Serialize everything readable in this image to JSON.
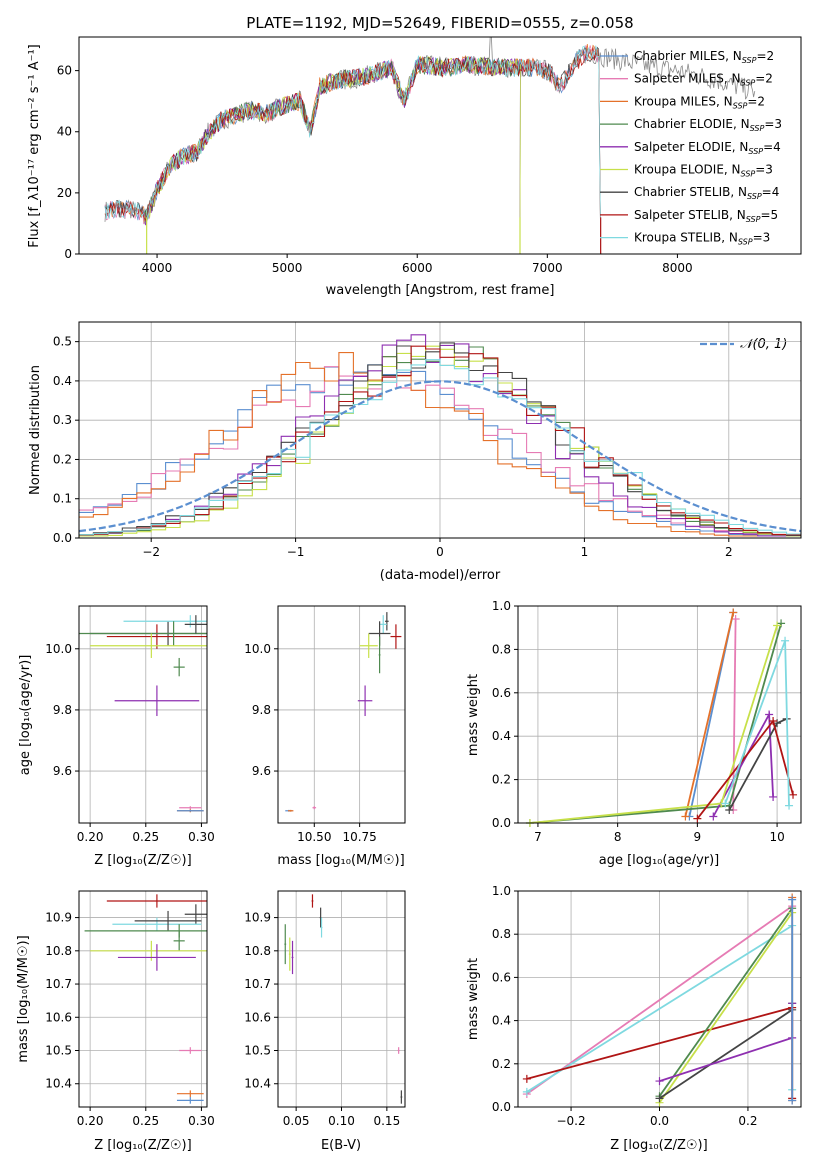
{
  "colors": {
    "Chabrier MILES": "#5b8fd0",
    "Salpeter MILES": "#e67bb4",
    "Kroupa MILES": "#e4712a",
    "Chabrier ELODIE": "#4f8a4f",
    "Salpeter ELODIE": "#8e2fb0",
    "Kroupa ELODIE": "#c7e04a",
    "Chabrier STELIB": "#444444",
    "Salpeter STELIB": "#b01515",
    "Kroupa STELIB": "#7fd9e0",
    "gaussian": "#5b8fd0"
  },
  "chart_data": [
    {
      "type": "line",
      "title": "PLATE=1192, MJD=52649, FIBERID=0555, z=0.058",
      "xlabel": "wavelength [Angstrom, rest frame]",
      "ylabel": "Flux [f_λ10⁻¹⁷ erg cm⁻² s⁻¹ A⁻¹]",
      "xlim": [
        3400,
        8950
      ],
      "ylim": [
        0,
        71
      ],
      "xticks": [
        "4000",
        "5000",
        "6000",
        "7000",
        "8000"
      ],
      "yticks": [
        "0",
        "20",
        "40",
        "60"
      ],
      "legend_position": "right",
      "spectrum_anchors": {
        "x": [
          3600,
          3700,
          3850,
          3920,
          4000,
          4100,
          4200,
          4300,
          4400,
          4500,
          4700,
          4850,
          5000,
          5100,
          5180,
          5250,
          5400,
          5600,
          5800,
          5900,
          6000,
          6200,
          6400,
          6600,
          6800,
          6900,
          7000,
          7100,
          7200,
          7300,
          7400
        ],
        "y": [
          14,
          15,
          14,
          12,
          21,
          29,
          32,
          33,
          40,
          44,
          47,
          46,
          49,
          50,
          40,
          55,
          57,
          58,
          61,
          50,
          62,
          61,
          62,
          61,
          61,
          61,
          60,
          55,
          62,
          66,
          65
        ]
      },
      "series": [
        {
          "name": "Chabrier MILES",
          "n_ssp": "2",
          "x_range": [
            3600,
            7400
          ],
          "drop_at": null
        },
        {
          "name": "Salpeter MILES",
          "n_ssp": "2",
          "x_range": [
            3600,
            7400
          ],
          "drop_at": null
        },
        {
          "name": "Kroupa MILES",
          "n_ssp": "2",
          "x_range": [
            3600,
            7400
          ],
          "drop_at": null
        },
        {
          "name": "Chabrier ELODIE",
          "n_ssp": "3",
          "x_range": [
            3900,
            6800
          ],
          "drop_at": 6790
        },
        {
          "name": "Salpeter ELODIE",
          "n_ssp": "4",
          "x_range": [
            3900,
            6800
          ],
          "drop_at": 6790
        },
        {
          "name": "Kroupa ELODIE",
          "n_ssp": "3",
          "x_range": [
            3900,
            6800
          ],
          "drop_at": 6790
        },
        {
          "name": "Chabrier STELIB",
          "n_ssp": "4",
          "x_range": [
            3600,
            7400
          ],
          "drop_at": 7410
        },
        {
          "name": "Salpeter STELIB",
          "n_ssp": "5",
          "x_range": [
            3600,
            7400
          ],
          "drop_at": 7410
        },
        {
          "name": "Kroupa STELIB",
          "n_ssp": "3",
          "x_range": [
            3600,
            7400
          ],
          "drop_at": 7410
        }
      ],
      "data_series": {
        "name": "data",
        "x_range": [
          3600,
          8600
        ],
        "tail_anchors": {
          "x": [
            7400,
            7700,
            8000,
            8300,
            8600
          ],
          "y": [
            65,
            62,
            60,
            57,
            53
          ]
        },
        "emission_line": {
          "x": 6563,
          "y": 71
        }
      }
    },
    {
      "type": "step",
      "xlabel": "(data-model)/error",
      "ylabel": "Normed distribution",
      "xlim": [
        -2.5,
        2.5
      ],
      "ylim": [
        0,
        0.55
      ],
      "xticks": [
        "−2",
        "−1",
        "0",
        "1",
        "2"
      ],
      "yticks": [
        "0.0",
        "0.1",
        "0.2",
        "0.3",
        "0.4",
        "0.5"
      ],
      "grid": true,
      "legend": {
        "label": "𝒩(0, 1)",
        "position": "top-right"
      },
      "gaussian": {
        "mean": 0,
        "sigma": 1
      },
      "bins": {
        "start": -2.5,
        "width": 0.1,
        "count": 50
      },
      "series": [
        {
          "name": "Chabrier MILES",
          "center": -0.55,
          "sigma": 0.95,
          "peak": 0.43
        },
        {
          "name": "Salpeter MILES",
          "center": -0.5,
          "sigma": 1.0,
          "peak": 0.41
        },
        {
          "name": "Kroupa MILES",
          "center": -0.6,
          "sigma": 0.9,
          "peak": 0.44
        },
        {
          "name": "Chabrier ELODIE",
          "center": 0.0,
          "sigma": 0.82,
          "peak": 0.47
        },
        {
          "name": "Salpeter ELODIE",
          "center": -0.1,
          "sigma": 0.8,
          "peak": 0.48
        },
        {
          "name": "Kroupa ELODIE",
          "center": 0.05,
          "sigma": 0.8,
          "peak": 0.48
        },
        {
          "name": "Chabrier STELIB",
          "center": -0.05,
          "sigma": 0.85,
          "peak": 0.47
        },
        {
          "name": "Salpeter STELIB",
          "center": 0.0,
          "sigma": 0.85,
          "peak": 0.46
        },
        {
          "name": "Kroupa STELIB",
          "center": 0.05,
          "sigma": 0.88,
          "peak": 0.44
        }
      ]
    },
    {
      "type": "scatter",
      "xlabel": "Z [log₁₀(Z/Z☉)]",
      "ylabel": "age  [log₁₀(age/yr)]",
      "xlim": [
        0.19,
        0.305
      ],
      "ylim": [
        9.43,
        10.14
      ],
      "xticks": [
        "0.20",
        "0.25",
        "0.30"
      ],
      "yticks": [
        "9.6",
        "9.8",
        "10.0"
      ],
      "grid": true,
      "points": [
        {
          "series": "Chabrier STELIB",
          "x": 0.27,
          "y": 10.05,
          "xerr": 0.07,
          "yerr": 0.04
        },
        {
          "series": "Salpeter STELIB",
          "x": 0.26,
          "y": 10.04,
          "xerr": 0.045,
          "yerr": 0.04
        },
        {
          "series": "Kroupa STELIB",
          "x": 0.29,
          "y": 10.09,
          "xerr": 0.06,
          "yerr": 0.02
        },
        {
          "series": "Chabrier ELODIE",
          "x": 0.275,
          "y": 10.05,
          "xerr": 0.085,
          "yerr": 0.04
        },
        {
          "series": "Chabrier STELIB",
          "x": 0.295,
          "y": 10.08,
          "xerr": 0.01,
          "yerr": 0.03
        },
        {
          "series": "Kroupa ELODIE",
          "x": 0.255,
          "y": 10.01,
          "xerr": 0.055,
          "yerr": 0.04
        },
        {
          "series": "Chabrier ELODIE",
          "x": 0.28,
          "y": 9.94,
          "xerr": 0.005,
          "yerr": 0.03
        },
        {
          "series": "Salpeter ELODIE",
          "x": 0.26,
          "y": 9.83,
          "xerr": 0.038,
          "yerr": 0.05
        },
        {
          "series": "Salpeter MILES",
          "x": 0.29,
          "y": 9.48,
          "xerr": 0.01,
          "yerr": 0.005
        },
        {
          "series": "Kroupa MILES",
          "x": 0.29,
          "y": 9.47,
          "xerr": 0.012,
          "yerr": 0.005
        },
        {
          "series": "Chabrier MILES",
          "x": 0.29,
          "y": 9.47,
          "xerr": 0.012,
          "yerr": 0.003
        }
      ]
    },
    {
      "type": "scatter",
      "xlabel": "mass [log₁₀(M/M☉)]",
      "ylabel": "",
      "xlim": [
        10.3,
        11.0
      ],
      "ylim": [
        9.43,
        10.14
      ],
      "xticks": [
        "10.50",
        "10.75"
      ],
      "yticks": [
        "9.6",
        "9.8",
        "10.0"
      ],
      "grid": true,
      "points": [
        {
          "series": "Chabrier STELIB",
          "x": 10.9,
          "y": 10.09,
          "xerr": 0.01,
          "yerr": 0.03
        },
        {
          "series": "Kroupa STELIB",
          "x": 10.88,
          "y": 10.08,
          "xerr": 0.02,
          "yerr": 0.03
        },
        {
          "series": "Chabrier STELIB",
          "x": 10.86,
          "y": 10.05,
          "xerr": 0.06,
          "yerr": 0.04
        },
        {
          "series": "Chabrier ELODIE",
          "x": 10.86,
          "y": 9.98,
          "xerr": 0.005,
          "yerr": 0.06
        },
        {
          "series": "Salpeter STELIB",
          "x": 10.95,
          "y": 10.04,
          "xerr": 0.03,
          "yerr": 0.04
        },
        {
          "series": "Kroupa ELODIE",
          "x": 10.8,
          "y": 10.01,
          "xerr": 0.05,
          "yerr": 0.04
        },
        {
          "series": "Salpeter ELODIE",
          "x": 10.78,
          "y": 9.83,
          "xerr": 0.04,
          "yerr": 0.05
        },
        {
          "series": "Salpeter MILES",
          "x": 10.5,
          "y": 9.48,
          "xerr": 0.01,
          "yerr": 0.005
        },
        {
          "series": "Chabrier MILES",
          "x": 10.36,
          "y": 9.47,
          "xerr": 0.02,
          "yerr": 0.003
        },
        {
          "series": "Kroupa MILES",
          "x": 10.37,
          "y": 9.47,
          "xerr": 0.015,
          "yerr": 0.003
        }
      ]
    },
    {
      "type": "line",
      "xlabel": "age  [log₁₀(age/yr)]",
      "ylabel": "mass weight",
      "xlim": [
        6.75,
        10.3
      ],
      "ylim": [
        0,
        1.0
      ],
      "xticks": [
        "7",
        "8",
        "9",
        "10"
      ],
      "yticks": [
        "0.0",
        "0.2",
        "0.4",
        "0.6",
        "0.8",
        "1.0"
      ],
      "grid": true,
      "series": [
        {
          "name": "Chabrier MILES",
          "x": [
            8.9,
            9.45
          ],
          "y": [
            0.03,
            0.97
          ]
        },
        {
          "name": "Salpeter MILES",
          "x": [
            9.45,
            9.48
          ],
          "y": [
            0.06,
            0.94
          ]
        },
        {
          "name": "Kroupa MILES",
          "x": [
            8.85,
            9.45
          ],
          "y": [
            0.03,
            0.97
          ]
        },
        {
          "name": "Chabrier ELODIE",
          "x": [
            6.9,
            9.4,
            10.05
          ],
          "y": [
            0.0,
            0.08,
            0.92
          ]
        },
        {
          "name": "Salpeter ELODIE",
          "x": [
            9.2,
            9.9,
            9.95
          ],
          "y": [
            0.03,
            0.5,
            0.12
          ]
        },
        {
          "name": "Kroupa ELODIE",
          "x": [
            6.9,
            9.3,
            10.0
          ],
          "y": [
            0.0,
            0.09,
            0.91
          ]
        },
        {
          "name": "Chabrier STELIB",
          "x": [
            9.4,
            10.0,
            10.12
          ],
          "y": [
            0.06,
            0.46,
            0.48
          ]
        },
        {
          "name": "Salpeter STELIB",
          "x": [
            9.0,
            9.95,
            10.2
          ],
          "y": [
            0.02,
            0.47,
            0.13
          ]
        },
        {
          "name": "Kroupa STELIB",
          "x": [
            9.35,
            10.1,
            10.15
          ],
          "y": [
            0.09,
            0.84,
            0.08
          ]
        }
      ]
    },
    {
      "type": "scatter",
      "xlabel": "Z [log₁₀(Z/Z☉)]",
      "ylabel": "mass [log₁₀(M/M☉)]",
      "xlim": [
        0.19,
        0.305
      ],
      "ylim": [
        10.33,
        10.98
      ],
      "xticks": [
        "0.20",
        "0.25",
        "0.30"
      ],
      "yticks": [
        "10.4",
        "10.5",
        "10.6",
        "10.7",
        "10.8",
        "10.9"
      ],
      "grid": true,
      "points": [
        {
          "series": "Salpeter STELIB",
          "x": 0.26,
          "y": 10.95,
          "xerr": 0.045,
          "yerr": 0.02
        },
        {
          "series": "Chabrier STELIB",
          "x": 0.295,
          "y": 10.91,
          "xerr": 0.01,
          "yerr": 0.03
        },
        {
          "series": "Kroupa STELIB",
          "x": 0.26,
          "y": 10.88,
          "xerr": 0.04,
          "yerr": 0.02
        },
        {
          "series": "Chabrier STELIB",
          "x": 0.27,
          "y": 10.89,
          "xerr": 0.03,
          "yerr": 0.03
        },
        {
          "series": "Chabrier ELODIE",
          "x": 0.28,
          "y": 10.86,
          "xerr": 0.085,
          "yerr": 0.02
        },
        {
          "series": "Chabrier ELODIE",
          "x": 0.28,
          "y": 10.83,
          "xerr": 0.005,
          "yerr": 0.03
        },
        {
          "series": "Kroupa ELODIE",
          "x": 0.255,
          "y": 10.8,
          "xerr": 0.055,
          "yerr": 0.03
        },
        {
          "series": "Salpeter ELODIE",
          "x": 0.26,
          "y": 10.78,
          "xerr": 0.035,
          "yerr": 0.04
        },
        {
          "series": "Salpeter MILES",
          "x": 0.29,
          "y": 10.5,
          "xerr": 0.01,
          "yerr": 0.01
        },
        {
          "series": "Kroupa MILES",
          "x": 0.29,
          "y": 10.37,
          "xerr": 0.012,
          "yerr": 0.01
        },
        {
          "series": "Chabrier MILES",
          "x": 0.29,
          "y": 10.35,
          "xerr": 0.012,
          "yerr": 0.01
        }
      ]
    },
    {
      "type": "scatter",
      "xlabel": "E(B-V)",
      "ylabel": "",
      "xlim": [
        0.03,
        0.17
      ],
      "ylim": [
        10.33,
        10.98
      ],
      "xticks": [
        "0.05",
        "0.10",
        "0.15"
      ],
      "yticks": [
        "10.4",
        "10.5",
        "10.6",
        "10.7",
        "10.8",
        "10.9"
      ],
      "grid": true,
      "points": [
        {
          "series": "Salpeter STELIB",
          "x": 0.068,
          "y": 10.95,
          "xerr": 0.001,
          "yerr": 0.02
        },
        {
          "series": "Chabrier STELIB",
          "x": 0.077,
          "y": 10.9,
          "xerr": 0.001,
          "yerr": 0.03
        },
        {
          "series": "Kroupa STELIB",
          "x": 0.078,
          "y": 10.87,
          "xerr": 0.001,
          "yerr": 0.03
        },
        {
          "series": "Chabrier ELODIE",
          "x": 0.038,
          "y": 10.82,
          "xerr": 0.001,
          "yerr": 0.06
        },
        {
          "series": "Kroupa ELODIE",
          "x": 0.043,
          "y": 10.79,
          "xerr": 0.001,
          "yerr": 0.05
        },
        {
          "series": "Salpeter ELODIE",
          "x": 0.046,
          "y": 10.78,
          "xerr": 0.001,
          "yerr": 0.05
        },
        {
          "series": "Salpeter MILES",
          "x": 0.163,
          "y": 10.5,
          "xerr": 0.001,
          "yerr": 0.01
        },
        {
          "series": "Chabrier STELIB",
          "x": 0.166,
          "y": 10.36,
          "xerr": 0.001,
          "yerr": 0.02
        }
      ]
    },
    {
      "type": "line",
      "xlabel": "Z [log₁₀(Z/Z☉)]",
      "ylabel": "mass weight",
      "xlim": [
        -0.32,
        0.32
      ],
      "ylim": [
        0,
        1.0
      ],
      "xticks": [
        "−0.2",
        "0.0",
        "0.2"
      ],
      "yticks": [
        "0.0",
        "0.2",
        "0.4",
        "0.6",
        "0.8",
        "1.0"
      ],
      "grid": true,
      "series": [
        {
          "name": "Salpeter MILES",
          "x": [
            -0.3,
            0.3
          ],
          "y": [
            0.06,
            0.93
          ]
        },
        {
          "name": "Kroupa STELIB",
          "x": [
            -0.3,
            0.3,
            0.3
          ],
          "y": [
            0.07,
            0.84,
            0.08
          ]
        },
        {
          "name": "Salpeter STELIB",
          "x": [
            -0.3,
            0.3,
            0.3
          ],
          "y": [
            0.13,
            0.46,
            0.04
          ]
        },
        {
          "name": "Chabrier ELODIE",
          "x": [
            0.0,
            0.3
          ],
          "y": [
            0.05,
            0.92
          ]
        },
        {
          "name": "Kroupa ELODIE",
          "x": [
            0.0,
            0.3
          ],
          "y": [
            0.02,
            0.9
          ]
        },
        {
          "name": "Chabrier STELIB",
          "x": [
            0.0,
            0.3,
            0.3
          ],
          "y": [
            0.04,
            0.45,
            0.48
          ]
        },
        {
          "name": "Salpeter ELODIE",
          "x": [
            0.0,
            0.3,
            0.3
          ],
          "y": [
            0.12,
            0.32,
            0.48
          ]
        },
        {
          "name": "Kroupa MILES",
          "x": [
            0.3,
            0.3
          ],
          "y": [
            0.97,
            0.03
          ]
        },
        {
          "name": "Chabrier MILES",
          "x": [
            0.3,
            0.3
          ],
          "y": [
            0.96,
            0.03
          ]
        }
      ]
    }
  ]
}
